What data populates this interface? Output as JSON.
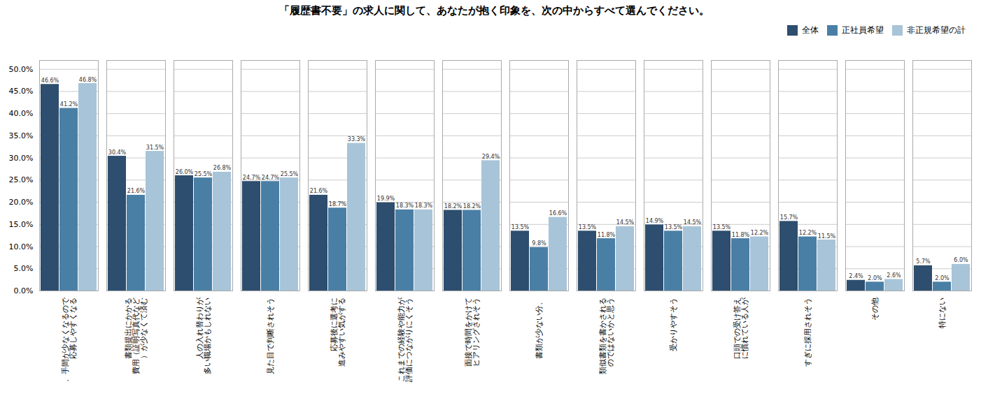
{
  "chart_data": {
    "type": "bar",
    "title": "「履歴書不要」の求人に関して、あなたが抱く印象を、次の中からすべて選んでください。",
    "categories": [
      "、手間が少なくなるので\n応募しやすくなる",
      "書類提出にかかる\n費用（証明写真代など\n）が少なくて済む",
      "人の入れ替わりが\n多い職場かもしれない",
      "見た目で判断されそう",
      "応募後に選考に\n進みやすい気がする",
      "これまでの経験や能力が\n評価につながりにくそう",
      "面接で時間をかけて\nヒアリングされそう",
      "書類が少ない分、",
      "類似書類を書かされる\nのではないかと思う",
      "受かりやすそう",
      "口頭での受け答え\nに慣れている人が",
      "すぎに採用されそう",
      "その他",
      "特にない"
    ],
    "series": [
      {
        "name": "全体",
        "color": "#2d4e6e",
        "values": [
          46.6,
          30.4,
          26.0,
          24.7,
          21.6,
          19.9,
          18.2,
          13.5,
          13.5,
          14.9,
          13.5,
          15.7,
          2.4,
          5.7
        ],
        "value_labels": [
          "46.6%",
          "30.4%",
          "26.0%",
          "24.7%",
          "21.6%",
          "19.9%",
          "18.2%",
          "13.5%",
          "13.5%",
          "14.9%",
          "13.5%",
          "15.7%",
          "2.4%",
          "5.7%"
        ]
      },
      {
        "name": "正社員希望",
        "color": "#4a7fa5",
        "values": [
          41.2,
          21.6,
          25.5,
          24.7,
          18.7,
          18.3,
          18.2,
          9.8,
          11.8,
          13.5,
          11.8,
          12.2,
          2.0,
          2.0
        ],
        "value_labels": [
          "41.2%",
          "21.6%",
          "25.5%",
          "24.7%",
          "18.7%",
          "18.3%",
          "18.2%",
          "9.8%",
          "11.8%",
          "13.5%",
          "11.8%",
          "12.2%",
          "2.0%",
          "2.0%"
        ]
      },
      {
        "name": "非正規希望の計",
        "color": "#a8c4d8",
        "values": [
          46.8,
          31.5,
          26.8,
          25.5,
          33.3,
          18.3,
          29.4,
          16.6,
          14.5,
          14.5,
          12.2,
          11.5,
          2.6,
          6.0
        ],
        "value_labels": [
          "46.8%",
          "31.5%",
          "26.8%",
          "25.5%",
          "33.3%",
          "18.3%",
          "29.4%",
          "16.6%",
          "14.5%",
          "14.5%",
          "12.2%",
          "11.5%",
          "2.6%",
          "6.0%"
        ]
      }
    ],
    "ylim": [
      0,
      52
    ],
    "yticks": [
      {
        "value": 0,
        "label": "0.0%"
      },
      {
        "value": 5,
        "label": "5.0%"
      },
      {
        "value": 10,
        "label": "10.0%"
      },
      {
        "value": 15,
        "label": "15.0%"
      },
      {
        "value": 20,
        "label": "20.0%"
      },
      {
        "value": 25,
        "label": "25.0%"
      },
      {
        "value": 30,
        "label": "30.0%"
      },
      {
        "value": 35,
        "label": "35.0%"
      },
      {
        "value": 40,
        "label": "40.0%"
      },
      {
        "value": 45,
        "label": "45.0%"
      },
      {
        "value": 50,
        "label": "50.0%"
      }
    ],
    "grid": true,
    "legend": "upper right",
    "data_labels": true
  }
}
